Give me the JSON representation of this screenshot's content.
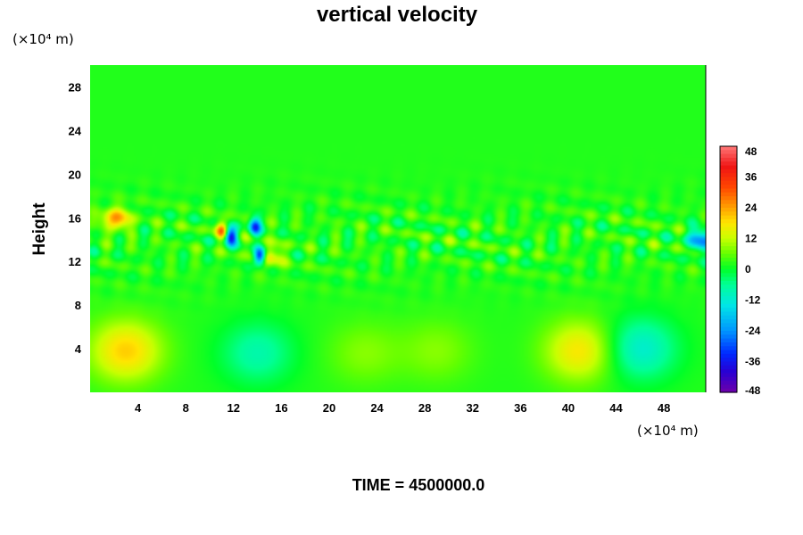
{
  "chart_data": {
    "type": "heatmap",
    "title": "vertical velocity",
    "ylabel": "Height",
    "xlabel": "",
    "x_unit": "(×10⁴ m)",
    "y_unit": "(×10⁴ m)",
    "xlim": [
      0,
      51.5
    ],
    "ylim": [
      0,
      30
    ],
    "x_ticks": [
      4,
      8,
      12,
      16,
      20,
      24,
      28,
      32,
      36,
      40,
      44,
      48
    ],
    "y_ticks": [
      4,
      8,
      12,
      16,
      20,
      24,
      28
    ],
    "colorbar": {
      "min": -48,
      "max": 48,
      "ticks": [
        48,
        36,
        24,
        12,
        0,
        -12,
        -24,
        -36,
        -48
      ]
    },
    "background_value": 2,
    "features": [
      {
        "name": "warm-cell-1",
        "x": 3,
        "y": 3.8,
        "value": 20
      },
      {
        "name": "warm-cell-2",
        "x": 41,
        "y": 3.8,
        "value": 18
      },
      {
        "name": "cool-cell-1",
        "x": 14,
        "y": 3.6,
        "value": -8
      },
      {
        "name": "cool-cell-2",
        "x": 46,
        "y": 4,
        "value": -12
      },
      {
        "name": "weak-cell-1",
        "x": 23,
        "y": 3.6,
        "value": 8
      },
      {
        "name": "weak-cell-2",
        "x": 29,
        "y": 3.8,
        "value": 8
      },
      {
        "name": "strong-downdraft",
        "x": 14.2,
        "y": 12.5,
        "value": -48
      },
      {
        "name": "downdraft-2",
        "x": 11.8,
        "y": 14.3,
        "value": -36
      },
      {
        "name": "downdraft-3",
        "x": 13.8,
        "y": 15.2,
        "value": -30
      },
      {
        "name": "updraft-1",
        "x": 11,
        "y": 14.9,
        "value": 26
      },
      {
        "name": "updraft-2",
        "x": 2.2,
        "y": 15.9,
        "value": 24
      },
      {
        "name": "updraft-3",
        "x": 14.8,
        "y": 12.5,
        "value": 20
      },
      {
        "name": "edge-downdraft",
        "x": 51.3,
        "y": 14,
        "value": -24
      }
    ],
    "time_label": "TIME = 4500000.0"
  }
}
